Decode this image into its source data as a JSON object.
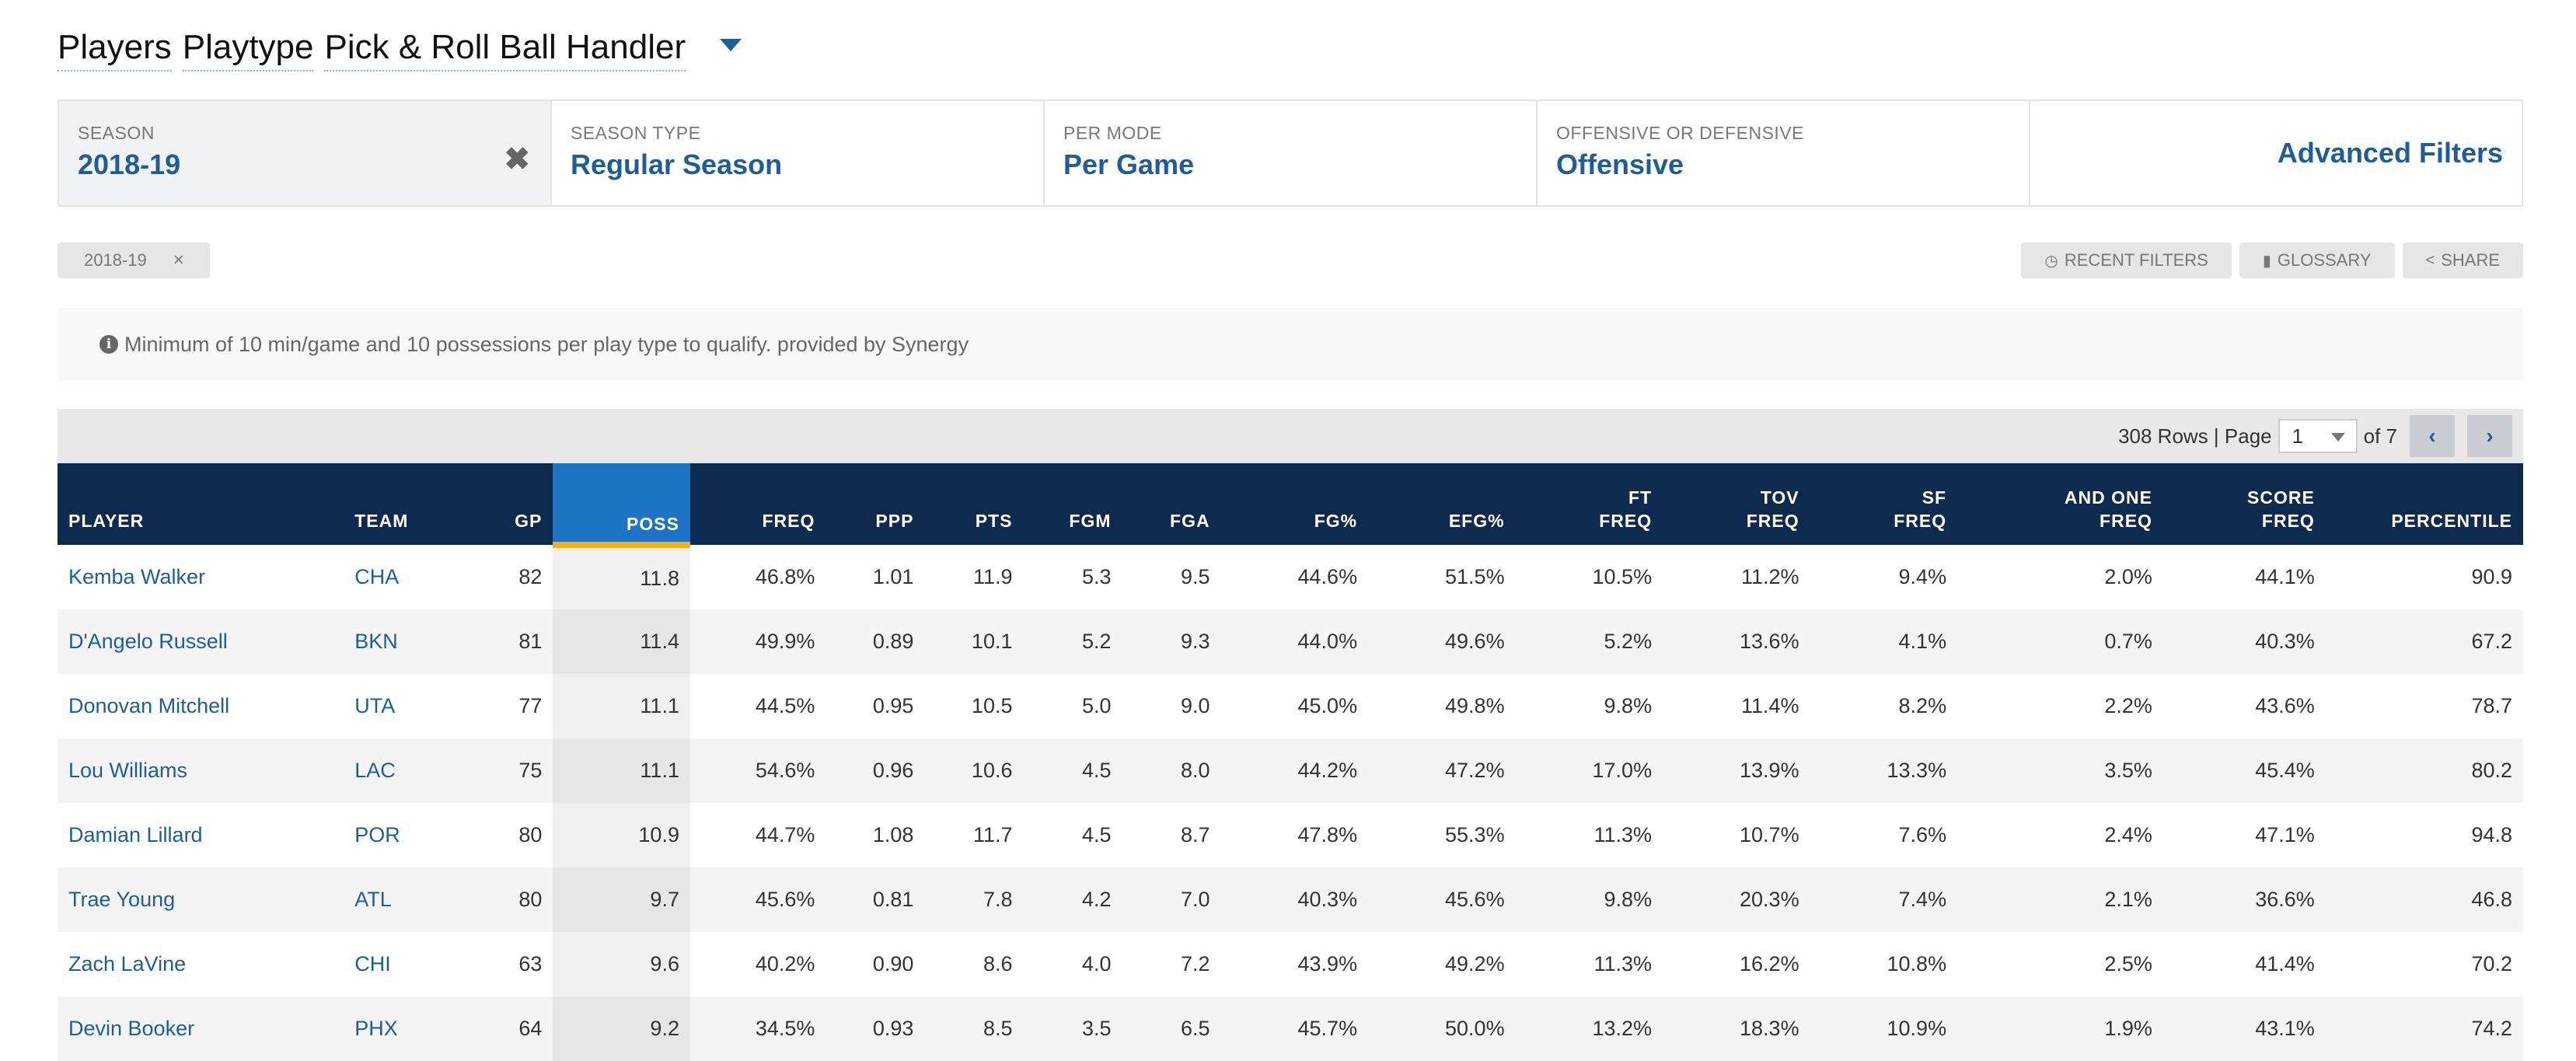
{
  "header": {
    "title_parts": [
      "Players",
      "Playtype",
      "Pick & Roll Ball Handler"
    ]
  },
  "filters": [
    {
      "label": "SEASON",
      "value": "2018-19",
      "clearable": true
    },
    {
      "label": "SEASON TYPE",
      "value": "Regular Season"
    },
    {
      "label": "PER MODE",
      "value": "Per Game"
    },
    {
      "label": "OFFENSIVE OR DEFENSIVE",
      "value": "Offensive"
    }
  ],
  "advanced_filters": "Advanced Filters",
  "chip": {
    "label": "2018-19",
    "close": "×"
  },
  "tools": {
    "recent_filters": "RECENT FILTERS",
    "glossary": "GLOSSARY",
    "share": "SHARE"
  },
  "note": "Minimum of 10 min/game and 10 possessions per play type to qualify. provided by Synergy",
  "pager": {
    "rows_text": "308 Rows | Page",
    "page": "1",
    "of_text": "of 7",
    "prev": "‹",
    "next": "›"
  },
  "table": {
    "columns": [
      {
        "key": "player",
        "label": [
          "PLAYER"
        ]
      },
      {
        "key": "team",
        "label": [
          "TEAM"
        ]
      },
      {
        "key": "gp",
        "label": [
          "GP"
        ]
      },
      {
        "key": "poss",
        "label": [
          "POSS"
        ]
      },
      {
        "key": "freq",
        "label": [
          "FREQ"
        ]
      },
      {
        "key": "ppp",
        "label": [
          "PPP"
        ]
      },
      {
        "key": "pts",
        "label": [
          "PTS"
        ]
      },
      {
        "key": "fgm",
        "label": [
          "FGM"
        ]
      },
      {
        "key": "fga",
        "label": [
          "FGA"
        ]
      },
      {
        "key": "fgpct",
        "label": [
          "FG%"
        ]
      },
      {
        "key": "efgpct",
        "label": [
          "EFG%"
        ]
      },
      {
        "key": "ftfreq",
        "label": [
          "FT",
          "FREQ"
        ]
      },
      {
        "key": "tovfreq",
        "label": [
          "TOV",
          "FREQ"
        ]
      },
      {
        "key": "sffreq",
        "label": [
          "SF",
          "FREQ"
        ]
      },
      {
        "key": "andonefreq",
        "label": [
          "AND ONE",
          "FREQ"
        ]
      },
      {
        "key": "scorefreq",
        "label": [
          "SCORE",
          "FREQ"
        ]
      },
      {
        "key": "percentile",
        "label": [
          "PERCENTILE"
        ]
      }
    ],
    "sorted_column": "POSS",
    "rows": [
      [
        "Kemba Walker",
        "CHA",
        "82",
        "11.8",
        "46.8%",
        "1.01",
        "11.9",
        "5.3",
        "9.5",
        "44.6%",
        "51.5%",
        "10.5%",
        "11.2%",
        "9.4%",
        "2.0%",
        "44.1%",
        "90.9"
      ],
      [
        "D'Angelo Russell",
        "BKN",
        "81",
        "11.4",
        "49.9%",
        "0.89",
        "10.1",
        "5.2",
        "9.3",
        "44.0%",
        "49.6%",
        "5.2%",
        "13.6%",
        "4.1%",
        "0.7%",
        "40.3%",
        "67.2"
      ],
      [
        "Donovan Mitchell",
        "UTA",
        "77",
        "11.1",
        "44.5%",
        "0.95",
        "10.5",
        "5.0",
        "9.0",
        "45.0%",
        "49.8%",
        "9.8%",
        "11.4%",
        "8.2%",
        "2.2%",
        "43.6%",
        "78.7"
      ],
      [
        "Lou Williams",
        "LAC",
        "75",
        "11.1",
        "54.6%",
        "0.96",
        "10.6",
        "4.5",
        "8.0",
        "44.2%",
        "47.2%",
        "17.0%",
        "13.9%",
        "13.3%",
        "3.5%",
        "45.4%",
        "80.2"
      ],
      [
        "Damian Lillard",
        "POR",
        "80",
        "10.9",
        "44.7%",
        "1.08",
        "11.7",
        "4.5",
        "8.7",
        "47.8%",
        "55.3%",
        "11.3%",
        "10.7%",
        "7.6%",
        "2.4%",
        "47.1%",
        "94.8"
      ],
      [
        "Trae Young",
        "ATL",
        "80",
        "9.7",
        "45.6%",
        "0.81",
        "7.8",
        "4.2",
        "7.0",
        "40.3%",
        "45.6%",
        "9.8%",
        "20.3%",
        "7.4%",
        "2.1%",
        "36.6%",
        "46.8"
      ],
      [
        "Zach LaVine",
        "CHI",
        "63",
        "9.6",
        "40.2%",
        "0.90",
        "8.6",
        "4.0",
        "7.2",
        "43.9%",
        "49.2%",
        "11.3%",
        "16.2%",
        "10.8%",
        "2.5%",
        "41.4%",
        "70.2"
      ],
      [
        "Devin Booker",
        "PHX",
        "64",
        "9.2",
        "34.5%",
        "0.93",
        "8.5",
        "3.5",
        "6.5",
        "45.7%",
        "50.0%",
        "13.2%",
        "18.3%",
        "10.9%",
        "1.9%",
        "43.1%",
        "74.2"
      ]
    ]
  },
  "colors": {
    "header_bg": "#0d2b4e",
    "sorted_bg": "#1d73c4",
    "sorted_underline": "#f2b01e",
    "link": "#1d5e9a"
  },
  "icons": {
    "dropdown": "caret-down-icon",
    "clear": "close-icon",
    "recent": "clock-icon",
    "glossary": "book-icon",
    "share": "share-icon",
    "info": "info-icon"
  }
}
